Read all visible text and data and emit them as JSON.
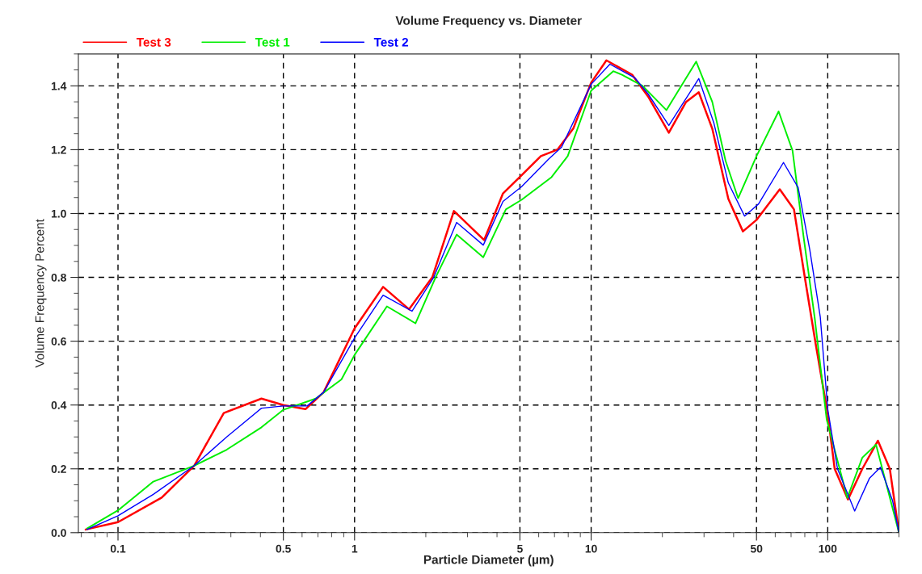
{
  "chart_data": {
    "type": "line",
    "title": "Volume Frequency vs. Diameter",
    "xlabel": "Particle Diameter (µm)",
    "ylabel": "Volume Frequency Percent",
    "log": "x",
    "xlim": [
      0.068,
      200
    ],
    "xticks": [
      0.1,
      0.5,
      1,
      5,
      10,
      50,
      100
    ],
    "ylim": [
      0,
      1.5
    ],
    "yticks": [
      {
        "value": 0,
        "label": "0.0"
      },
      0.2,
      0.4,
      0.6,
      0.8,
      {
        "value": 1,
        "label": "1.0"
      },
      1.2,
      1.4
    ],
    "grid": true,
    "legend": "top left",
    "line_style": "solid",
    "marker": "none",
    "series": [
      {
        "name": "Test 3",
        "color": "#ff0000",
        "x": [
          0.073,
          0.1,
          0.153,
          0.21,
          0.28,
          0.404,
          0.5,
          0.62,
          0.74,
          1.0,
          1.32,
          1.7,
          2.13,
          2.63,
          3.53,
          4.24,
          5.08,
          6.13,
          7.2,
          8.4,
          10,
          11.6,
          14.9,
          17.4,
          21.3,
          25.2,
          28.5,
          32.5,
          38,
          43.8,
          50,
          62.7,
          72,
          80,
          89,
          100,
          107,
          121.8,
          140,
          163,
          183,
          200
        ],
        "values": [
          0.01,
          0.033,
          0.11,
          0.21,
          0.375,
          0.42,
          0.4,
          0.387,
          0.44,
          0.64,
          0.77,
          0.7,
          0.8,
          1.008,
          0.917,
          1.063,
          1.12,
          1.18,
          1.2,
          1.266,
          1.41,
          1.48,
          1.435,
          1.367,
          1.253,
          1.35,
          1.38,
          1.266,
          1.046,
          0.944,
          0.98,
          1.076,
          1.013,
          0.8,
          0.59,
          0.372,
          0.2,
          0.104,
          0.2,
          0.288,
          0.2,
          0.0
        ]
      },
      {
        "name": "Test 1",
        "color": "#00ee00",
        "x": [
          0.074,
          0.1,
          0.141,
          0.21,
          0.288,
          0.404,
          0.5,
          0.685,
          0.88,
          1.0,
          1.37,
          1.81,
          2.2,
          2.7,
          3.5,
          4.36,
          5.08,
          6.8,
          7.96,
          10,
          12.4,
          13.5,
          16.5,
          20.8,
          27.8,
          32.5,
          37,
          41.8,
          50,
          62,
          71,
          79,
          88,
          99,
          121,
          140,
          160,
          200
        ],
        "values": [
          0.013,
          0.07,
          0.16,
          0.21,
          0.26,
          0.33,
          0.385,
          0.42,
          0.48,
          0.557,
          0.709,
          0.656,
          0.8,
          0.934,
          0.863,
          1.013,
          1.043,
          1.114,
          1.18,
          1.385,
          1.446,
          1.435,
          1.4,
          1.324,
          1.476,
          1.35,
          1.165,
          1.048,
          1.18,
          1.32,
          1.197,
          0.929,
          0.676,
          0.354,
          0.109,
          0.235,
          0.276,
          0.0
        ]
      },
      {
        "name": "Test 2",
        "color": "#0000ff",
        "x": [
          0.074,
          0.1,
          0.141,
          0.21,
          0.288,
          0.404,
          0.5,
          0.63,
          0.74,
          1.0,
          1.32,
          1.75,
          2.16,
          2.7,
          3.5,
          4.24,
          5.08,
          6.6,
          7.5,
          10,
          12,
          15.3,
          17.4,
          21.3,
          28.5,
          33,
          38,
          44.5,
          51,
          65,
          75,
          84,
          93,
          100,
          110,
          130,
          150,
          167,
          188,
          200
        ],
        "values": [
          0.01,
          0.053,
          0.12,
          0.21,
          0.3,
          0.39,
          0.397,
          0.397,
          0.44,
          0.61,
          0.744,
          0.694,
          0.8,
          0.972,
          0.901,
          1.038,
          1.084,
          1.17,
          1.208,
          1.405,
          1.468,
          1.425,
          1.375,
          1.276,
          1.423,
          1.284,
          1.096,
          0.992,
          1.03,
          1.16,
          1.081,
          0.886,
          0.676,
          0.387,
          0.2,
          0.068,
          0.17,
          0.205,
          0.1,
          0.0
        ]
      }
    ]
  }
}
